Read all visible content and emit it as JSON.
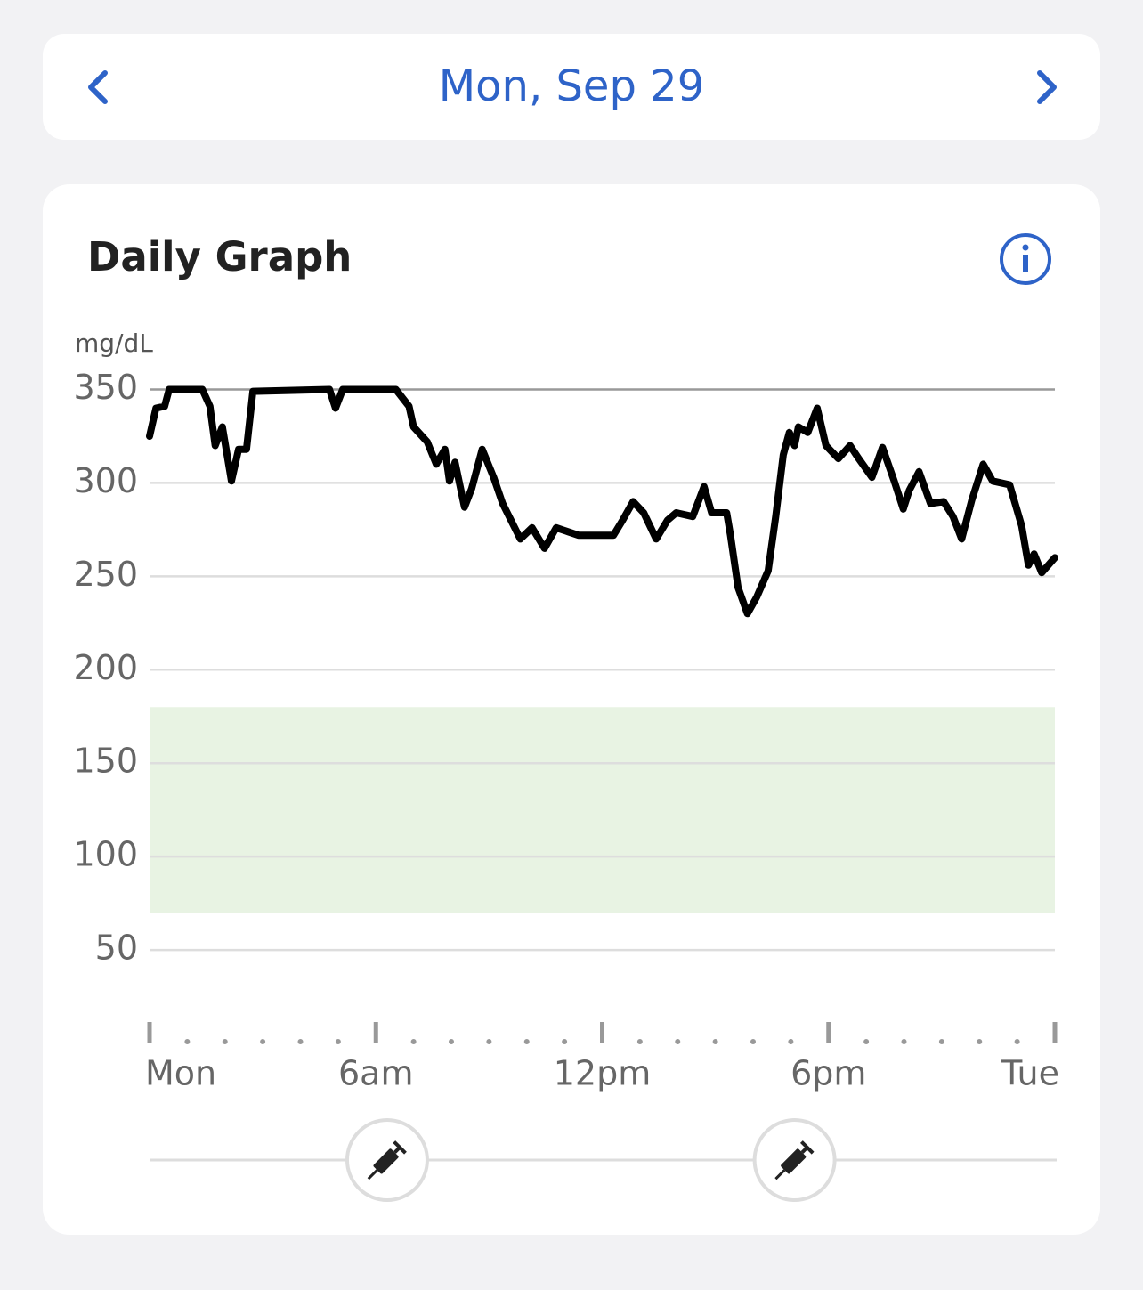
{
  "header": {
    "date": "Mon, Sep 29"
  },
  "card": {
    "title": "Daily Graph"
  },
  "chart_data": {
    "type": "line",
    "y_label": "mg/dL",
    "color": "#000000",
    "ylim": [
      0,
      350
    ],
    "yticks": [
      50,
      100,
      150,
      200,
      250,
      300,
      350
    ],
    "grid": true,
    "target_range": [
      70,
      180
    ],
    "target_color": "#e8f3e3",
    "xlim": [
      0,
      24
    ],
    "xticks": [
      {
        "value": 0,
        "label": "Mon"
      },
      {
        "value": 6,
        "label": "6am"
      },
      {
        "value": 12,
        "label": "12pm"
      },
      {
        "value": 18,
        "label": "6pm"
      },
      {
        "value": 24,
        "label": "Tue"
      }
    ],
    "xminorticks": [
      1,
      2,
      3,
      4,
      5,
      7,
      8,
      9,
      10,
      11,
      13,
      14,
      15,
      16,
      17,
      19,
      20,
      21,
      22,
      23
    ],
    "insulin_x": [
      6.3,
      17.1
    ],
    "x": [
      0,
      0.17,
      0.4,
      0.52,
      1.4,
      1.6,
      1.74,
      1.93,
      2.17,
      2.36,
      2.57,
      2.74,
      4.77,
      4.93,
      5.12,
      6.53,
      6.88,
      7.0,
      7.36,
      7.6,
      7.83,
      7.95,
      8.1,
      8.35,
      8.54,
      8.82,
      9.12,
      9.36,
      9.83,
      10.14,
      10.47,
      10.78,
      11.37,
      11.7,
      12.3,
      12.54,
      12.82,
      13.1,
      13.43,
      13.73,
      13.96,
      14.4,
      14.7,
      14.9,
      15.3,
      15.4,
      15.6,
      15.85,
      16.1,
      16.4,
      16.6,
      16.8,
      16.96,
      17.1,
      17.2,
      17.45,
      17.7,
      17.93,
      18.26,
      18.57,
      18.8,
      19.15,
      19.43,
      19.74,
      19.98,
      20.14,
      20.4,
      20.7,
      21.05,
      21.3,
      21.53,
      21.8,
      22.1,
      22.35,
      22.8,
      23.12,
      23.3,
      23.45,
      23.65,
      24.0
    ],
    "values": [
      325,
      340,
      341,
      350,
      350,
      341,
      320,
      330,
      301,
      318,
      318,
      349,
      350,
      340,
      350,
      350,
      341,
      330,
      322,
      310,
      318,
      301,
      311,
      287,
      297,
      318,
      303,
      289,
      270,
      276,
      265,
      276,
      272,
      272,
      272,
      280,
      290,
      284,
      270,
      280,
      284,
      282,
      298,
      284,
      284,
      272,
      244,
      230,
      239,
      253,
      282,
      315,
      327,
      320,
      330,
      327,
      340,
      320,
      313,
      320,
      313,
      303,
      319,
      301,
      286,
      296,
      306,
      289,
      290,
      282,
      270,
      291,
      310,
      301,
      299,
      277,
      256,
      262,
      252,
      260
    ]
  }
}
